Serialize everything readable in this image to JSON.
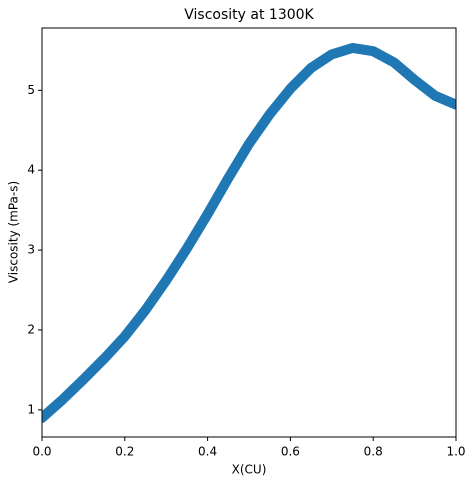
{
  "chart_data": {
    "type": "line",
    "title": "Viscosity at 1300K",
    "xlabel": "X(CU)",
    "ylabel": "Viscosity (mPa-s)",
    "x": [
      0,
      0.05,
      0.1,
      0.15,
      0.2,
      0.25,
      0.3,
      0.35,
      0.4,
      0.45,
      0.5,
      0.55,
      0.6,
      0.65,
      0.7,
      0.75,
      0.8,
      0.85,
      0.9,
      0.95,
      1.0
    ],
    "series": [
      {
        "name": "Viscosity",
        "color": "#1f77b4",
        "values": [
          0.9,
          1.13,
          1.38,
          1.64,
          1.92,
          2.25,
          2.62,
          3.02,
          3.45,
          3.9,
          4.33,
          4.7,
          5.02,
          5.28,
          5.45,
          5.53,
          5.49,
          5.35,
          5.13,
          4.93,
          4.82
        ]
      }
    ],
    "xlim": [
      0,
      1
    ],
    "ylim": [
      0.66,
      5.78
    ],
    "xticks": [
      {
        "value": 0,
        "label": "0.0"
      },
      0.2,
      0.4,
      0.6,
      0.8,
      {
        "value": 1,
        "label": "1.0"
      }
    ],
    "yticks": [
      1,
      2,
      3,
      4,
      5
    ],
    "grid": false
  }
}
